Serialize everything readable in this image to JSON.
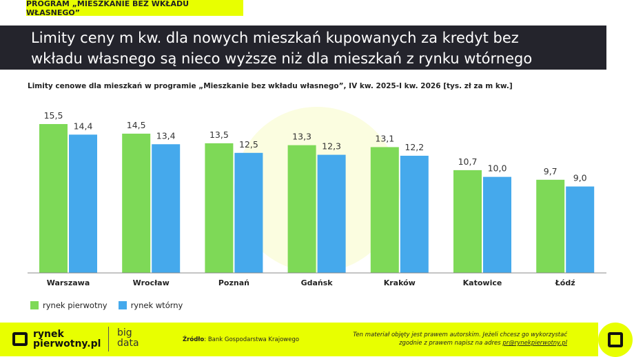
{
  "tag": "PROGRAM „MIESZKANIE BEZ WKŁADU WŁASNEGO”",
  "title_line1": "Limity ceny m kw. dla nowych mieszkań kupowanych za kredyt bez",
  "title_line2": "wkładu własnego są nieco wyższe niż dla mieszkań z rynku wtórnego",
  "footer": {
    "logo_line1": "rynek",
    "logo_line2": "pierwotny.pl",
    "bigdata_line1": "big",
    "bigdata_line2": "data",
    "source_label": "Źródło",
    "source_text": ": Bank Gospodarstwa Krajowego",
    "copy_line1": "Ten materiał objęty jest prawem autorskim. Jeżeli chcesz go wykorzystać",
    "copy_line2": "zgodnie z prawem napisz na adres ",
    "email": "pr@rynekpierwotny.pl"
  },
  "colors": {
    "primary": "#7ed957",
    "secondary": "#45a9ec",
    "accent": "#e8ff00",
    "dark": "#24242c"
  },
  "chart_data": {
    "type": "bar",
    "title": "Limity cenowe dla mieszkań w programie „Mieszkanie bez wkładu własnego”, IV kw. 2025-I kw. 2026 [tys. zł za m kw.]",
    "categories": [
      "Warszawa",
      "Wrocław",
      "Poznań",
      "Gdańsk",
      "Kraków",
      "Katowice",
      "Łódź"
    ],
    "series": [
      {
        "name": "rynek pierwotny",
        "values": [
          15.5,
          14.5,
          13.5,
          13.3,
          13.1,
          10.7,
          9.7
        ],
        "labels": [
          "15,5",
          "14,5",
          "13,5",
          "13,3",
          "13,1",
          "10,7",
          "9,7"
        ]
      },
      {
        "name": "rynek wtórny",
        "values": [
          14.4,
          13.4,
          12.5,
          12.3,
          12.2,
          10.0,
          9.0
        ],
        "labels": [
          "14,4",
          "13,4",
          "12,5",
          "12,3",
          "12,2",
          "10,0",
          "9,0"
        ]
      }
    ],
    "ylim": [
      0,
      15.5
    ],
    "grid": false,
    "legend": "bottom-left"
  }
}
